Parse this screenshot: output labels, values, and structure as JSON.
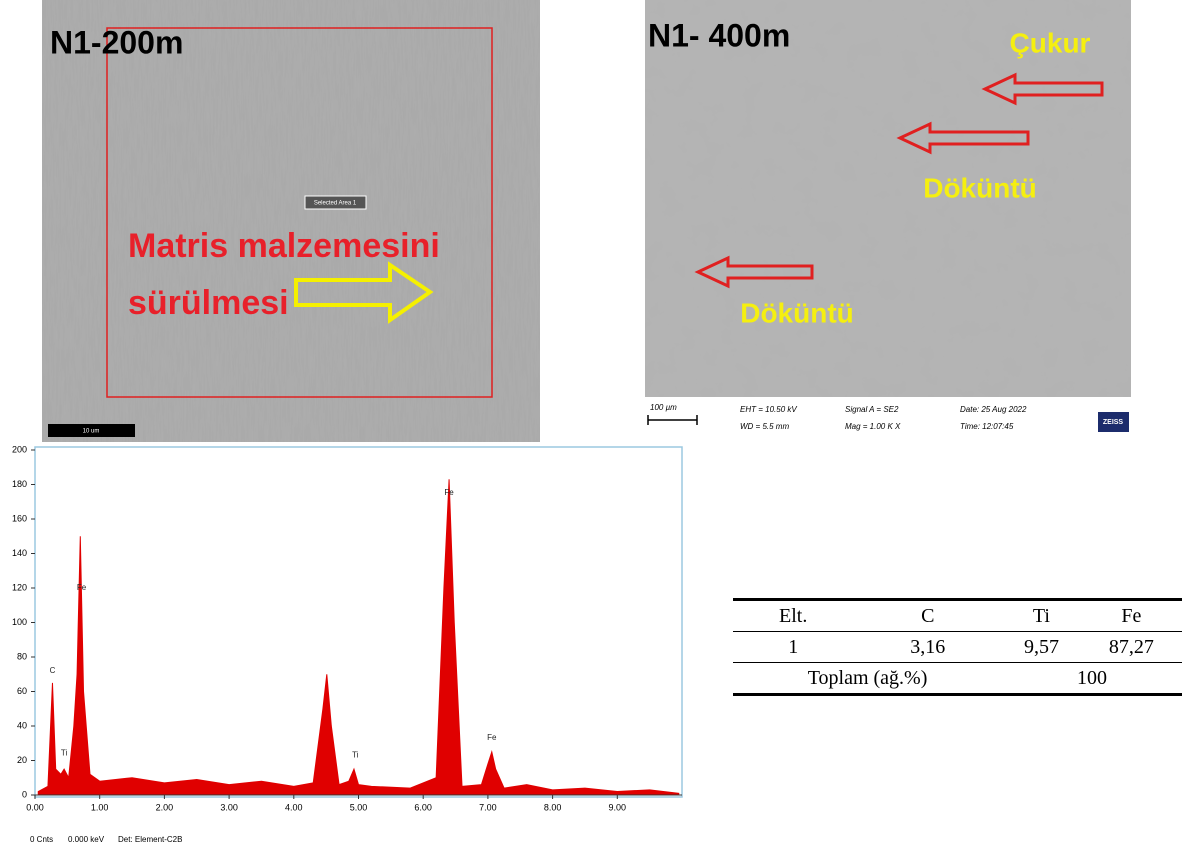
{
  "images": [
    {
      "label": "N1-200m",
      "annotation_lines": [
        "Matris malzemesini",
        "sürülmesi"
      ],
      "selection": "Selected Area 1",
      "scale_bar": "10 um"
    },
    {
      "label": "N1- 400m",
      "annotations": [
        "Çukur",
        "Döküntü",
        "Döküntü"
      ],
      "scale_bar": "100 µm",
      "info": [
        "EHT = 10.50 kV",
        "WD = 5.5 mm",
        "Signal A = SE2",
        "Mag = 1.00 K X",
        "Date: 25 Aug 2022",
        "Time: 12:07:45"
      ],
      "brand": "ZEISS"
    }
  ],
  "chart_data": {
    "type": "area",
    "color": "#e00000",
    "x": [
      0.05,
      0.2,
      0.27,
      0.32,
      0.4,
      0.45,
      0.52,
      0.6,
      0.65,
      0.7,
      0.75,
      0.85,
      1.0,
      1.5,
      2.0,
      2.5,
      3.0,
      3.5,
      4.0,
      4.3,
      4.45,
      4.51,
      4.58,
      4.7,
      4.85,
      4.93,
      5.0,
      5.2,
      5.8,
      6.2,
      6.32,
      6.4,
      6.48,
      6.6,
      6.9,
      7.0,
      7.06,
      7.12,
      7.25,
      7.6,
      8.0,
      8.5,
      9.0,
      9.5,
      9.95
    ],
    "values": [
      2,
      5,
      65,
      15,
      12,
      15,
      10,
      40,
      70,
      150,
      60,
      12,
      8,
      10,
      7,
      9,
      6,
      8,
      5,
      7,
      50,
      70,
      40,
      6,
      8,
      15,
      6,
      5,
      4,
      10,
      120,
      183,
      100,
      5,
      6,
      18,
      25,
      15,
      4,
      6,
      3,
      4,
      2,
      3,
      1
    ],
    "xlim": [
      0,
      10
    ],
    "ylim": [
      0,
      200
    ],
    "xticks": [
      {
        "value": 0,
        "label": "0.00"
      },
      {
        "value": 1,
        "label": "1.00"
      },
      {
        "value": 2,
        "label": "2.00"
      },
      {
        "value": 3,
        "label": "3.00"
      },
      {
        "value": 4,
        "label": "4.00"
      },
      {
        "value": 5,
        "label": "5.00"
      },
      {
        "value": 6,
        "label": "6.00"
      },
      {
        "value": 7,
        "label": "7.00"
      },
      {
        "value": 8,
        "label": "8.00"
      },
      {
        "value": 9,
        "label": "9.00"
      }
    ],
    "yticks": [
      0,
      20,
      40,
      60,
      80,
      100,
      120,
      140,
      160,
      180,
      200
    ],
    "annotations": [
      {
        "text": "C",
        "x": 0.27,
        "y": 72
      },
      {
        "text": "Ti",
        "x": 0.45,
        "y": 24
      },
      {
        "text": "Fe",
        "x": 0.72,
        "y": 120
      },
      {
        "text": "Ti",
        "x": 4.95,
        "y": 23
      },
      {
        "text": "Fe",
        "x": 6.4,
        "y": 175
      },
      {
        "text": "Fe",
        "x": 7.06,
        "y": 33
      }
    ],
    "footer": [
      "0 Cnts",
      "0.000 keV",
      "Det: Element-C2B"
    ]
  },
  "table": {
    "header": [
      "Elt.",
      "C",
      "Ti",
      "Fe"
    ],
    "rows": [
      [
        "1",
        "3,16",
        "9,57",
        "87,27"
      ]
    ],
    "total": [
      "Toplam (ağ.%)",
      "100"
    ]
  }
}
